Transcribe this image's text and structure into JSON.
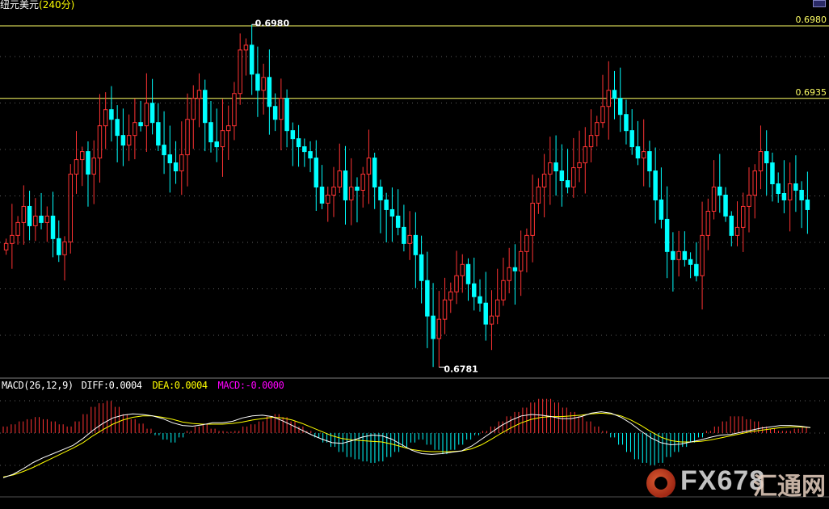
{
  "header": {
    "symbol": "纽元美元",
    "interval": "(240分)"
  },
  "colors": {
    "background": "#000000",
    "up": "#ff3333",
    "down": "#00ffff",
    "level_line": "#ffff66",
    "diff": "#ffffff",
    "dea": "#ffff00",
    "macd_label": "#ff00ff",
    "grid": "#c0c0c0"
  },
  "icons": {
    "corner_button": "window-toggle-icon",
    "watermark": "fx678-logo-icon"
  },
  "watermark": {
    "brand": "FX678",
    "cn": "汇通网"
  },
  "macd_panel": {
    "title": "MACD(26,12,9)",
    "diff": "DIFF:0.0004",
    "dea": "DEA:0.0004",
    "macd": "MACD:-0.0000"
  },
  "chart_data": {
    "type": "candlestick",
    "y_range": [
      0.6763,
      0.6992
    ],
    "levels": [
      {
        "value": 0.698,
        "label": "0.6980"
      },
      {
        "value": 0.6935,
        "label": "0.6935"
      }
    ],
    "annotations": [
      {
        "text": "0.6980",
        "type": "high"
      },
      {
        "text": "0.6781",
        "type": "low"
      }
    ],
    "grid": "dotted horizontal",
    "close_path": [
      0.6845,
      0.685,
      0.6858,
      0.6868,
      0.6856,
      0.6862,
      0.6858,
      0.6862,
      0.6848,
      0.6838,
      0.6846,
      0.6888,
      0.6897,
      0.6902,
      0.6888,
      0.6898,
      0.6918,
      0.6928,
      0.6922,
      0.6912,
      0.6906,
      0.6912,
      0.692,
      0.6918,
      0.6932,
      0.692,
      0.6906,
      0.69,
      0.6895,
      0.689,
      0.69,
      0.6922,
      0.6935,
      0.694,
      0.692,
      0.6908,
      0.6905,
      0.6915,
      0.6918,
      0.6938,
      0.6965,
      0.6968,
      0.695,
      0.694,
      0.6948,
      0.693,
      0.6922,
      0.6935,
      0.6915,
      0.691,
      0.6905,
      0.6902,
      0.6898,
      0.688,
      0.687,
      0.6875,
      0.688,
      0.689,
      0.6872,
      0.688,
      0.6878,
      0.6888,
      0.6898,
      0.688,
      0.6872,
      0.6866,
      0.6862,
      0.6855,
      0.6845,
      0.685,
      0.6838,
      0.6822,
      0.68,
      0.6786,
      0.6798,
      0.681,
      0.6815,
      0.6825,
      0.6832,
      0.682,
      0.6812,
      0.6808,
      0.6795,
      0.68,
      0.681,
      0.6822,
      0.683,
      0.6828,
      0.684,
      0.685,
      0.687,
      0.688,
      0.6888,
      0.6895,
      0.689,
      0.6884,
      0.688,
      0.6892,
      0.6895,
      0.6905,
      0.6912,
      0.692,
      0.693,
      0.694,
      0.6935,
      0.6925,
      0.6915,
      0.6905,
      0.6898,
      0.6902,
      0.689,
      0.6872,
      0.686,
      0.684,
      0.6835,
      0.684,
      0.6835,
      0.6832,
      0.6825,
      0.685,
      0.6865,
      0.688,
      0.6875,
      0.6862,
      0.685,
      0.6855,
      0.6868,
      0.6875,
      0.689,
      0.6902,
      0.6895,
      0.6882,
      0.6876,
      0.6872,
      0.6882,
      0.6878,
      0.6872,
      0.6866
    ],
    "close_step": 0.9,
    "macd_hist": [
      0.9,
      1.2,
      1.6,
      1.9,
      2.2,
      1.9,
      1.6,
      1.2,
      0.9,
      1.6,
      2.6,
      3.6,
      4.1,
      4.4,
      3.6,
      2.6,
      1.9,
      1.3,
      0.6,
      -0.3,
      -0.9,
      -1.3,
      -0.6,
      0.3,
      0.9,
      1.2,
      0.6,
      0.3,
      0.2,
      0.3,
      0.9,
      1.2,
      1.6,
      2.3,
      2.6,
      2.2,
      1.6,
      0.9,
      0.3,
      -0.6,
      -1.3,
      -1.9,
      -2.6,
      -3.3,
      -3.6,
      -3.9,
      -4.1,
      -3.9,
      -3.3,
      -2.6,
      -1.9,
      -1.3,
      -0.9,
      -1.6,
      -2.3,
      -2.9,
      -2.3,
      -1.6,
      -0.9,
      -0.3,
      0.3,
      0.9,
      1.6,
      2.3,
      2.9,
      3.5,
      4.2,
      4.7,
      4.7,
      4.2,
      3.5,
      2.9,
      2.3,
      1.6,
      0.9,
      0.3,
      -0.6,
      -1.6,
      -2.6,
      -3.6,
      -4.1,
      -4.4,
      -4.1,
      -3.3,
      -2.6,
      -1.9,
      -1.3,
      -0.6,
      0.3,
      0.9,
      1.6,
      2.3,
      2.3,
      1.9,
      1.6,
      0.9,
      0.6,
      0.3,
      0.3,
      0.6,
      0.9
    ],
    "diff_path": [
      -6.5,
      -6.0,
      -5.2,
      -4.3,
      -3.6,
      -3.0,
      -2.4,
      -1.8,
      -0.8,
      0.4,
      1.4,
      2.2,
      2.6,
      2.8,
      2.7,
      2.5,
      2.1,
      1.5,
      1.1,
      1.0,
      1.2,
      1.5,
      1.5,
      1.7,
      2.2,
      2.5,
      2.6,
      2.4,
      1.8,
      1.1,
      0.4,
      -0.3,
      -0.9,
      -1.4,
      -1.5,
      -1.1,
      -0.6,
      -0.3,
      -0.4,
      -0.9,
      -1.7,
      -2.5,
      -3.0,
      -3.1,
      -3.0,
      -2.8,
      -2.6,
      -1.9,
      -0.9,
      0.1,
      1.1,
      1.9,
      2.5,
      2.7,
      2.6,
      2.4,
      2.1,
      2.1,
      2.4,
      2.9,
      3.1,
      2.9,
      2.3,
      1.4,
      0.3,
      -0.7,
      -1.4,
      -1.7,
      -1.6,
      -1.3,
      -1.0,
      -0.6,
      -0.3,
      -0.2,
      0.1,
      0.4,
      0.7,
      0.9,
      1.1,
      1.1,
      1.0,
      0.8
    ],
    "dea_path": [
      -6.4,
      -6.1,
      -5.6,
      -5.0,
      -4.3,
      -3.6,
      -2.9,
      -2.2,
      -1.4,
      -0.4,
      0.5,
      1.3,
      1.9,
      2.3,
      2.5,
      2.5,
      2.3,
      2.0,
      1.6,
      1.4,
      1.3,
      1.3,
      1.3,
      1.4,
      1.6,
      1.9,
      2.1,
      2.3,
      2.2,
      1.9,
      1.4,
      0.8,
      0.2,
      -0.4,
      -0.8,
      -1.0,
      -1.1,
      -1.2,
      -1.3,
      -1.6,
      -2.0,
      -2.4,
      -2.6,
      -2.7,
      -2.7,
      -2.7,
      -2.6,
      -2.3,
      -1.7,
      -0.9,
      0.0,
      0.8,
      1.5,
      2.0,
      2.3,
      2.4,
      2.4,
      2.5,
      2.6,
      2.8,
      2.9,
      2.8,
      2.5,
      1.9,
      1.1,
      0.2,
      -0.6,
      -1.1,
      -1.3,
      -1.3,
      -1.2,
      -1.0,
      -0.7,
      -0.4,
      -0.1,
      0.2,
      0.4,
      0.6,
      0.8,
      0.9,
      0.9,
      0.8
    ]
  }
}
